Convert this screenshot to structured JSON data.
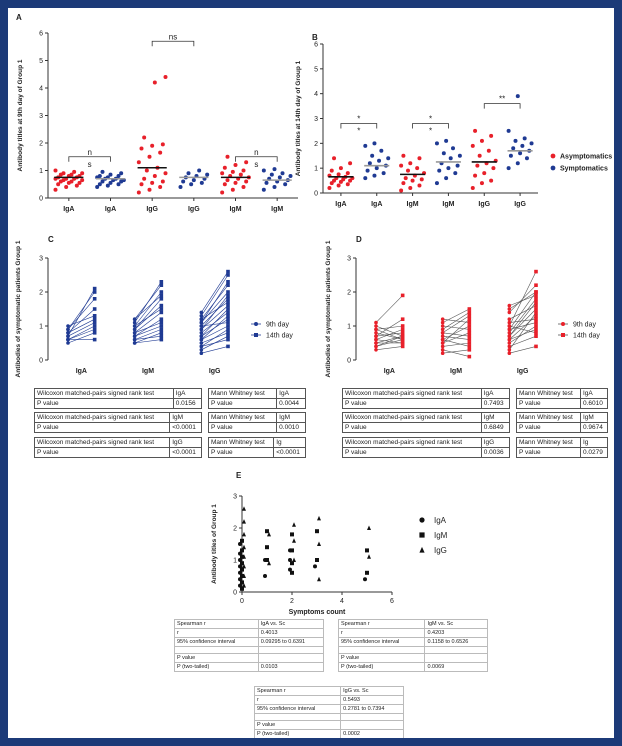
{
  "chart_data": [
    {
      "panel": "A",
      "type": "scatter",
      "ylabel": "Antibody titles at 9th day of Group 1",
      "ylim": [
        0,
        6
      ],
      "yticks": [
        "0",
        "1",
        "2",
        "3",
        "4",
        "5",
        "6"
      ],
      "categories": [
        "IgA",
        "IgA",
        "IgG",
        "IgG",
        "IgM",
        "IgM"
      ],
      "colors": [
        "#e8202a",
        "#1f3a93",
        "#e8202a",
        "#1f3a93",
        "#e8202a",
        "#1f3a93"
      ],
      "points": [
        [
          0.3,
          0.4,
          0.45,
          0.5,
          0.55,
          0.55,
          0.6,
          0.6,
          0.65,
          0.65,
          0.7,
          0.7,
          0.7,
          0.75,
          0.75,
          0.8,
          0.8,
          0.85,
          0.85,
          0.9,
          0.9,
          0.95,
          1.0
        ],
        [
          0.4,
          0.45,
          0.5,
          0.5,
          0.55,
          0.6,
          0.6,
          0.65,
          0.65,
          0.7,
          0.7,
          0.75,
          0.75,
          0.8,
          0.8,
          0.85,
          0.9,
          0.95
        ],
        [
          0.2,
          0.3,
          0.4,
          0.5,
          0.55,
          0.6,
          0.7,
          0.8,
          0.9,
          1.0,
          1.1,
          1.3,
          1.5,
          1.65,
          1.8,
          1.9,
          1.95,
          2.2,
          4.2,
          4.4
        ],
        [
          0.4,
          0.5,
          0.55,
          0.6,
          0.65,
          0.7,
          0.75,
          0.8,
          0.85,
          0.9,
          1.0
        ],
        [
          0.2,
          0.3,
          0.4,
          0.5,
          0.55,
          0.6,
          0.65,
          0.7,
          0.75,
          0.8,
          0.85,
          0.9,
          0.95,
          1.0,
          1.1,
          1.2,
          1.3,
          1.5
        ],
        [
          0.3,
          0.4,
          0.5,
          0.55,
          0.6,
          0.65,
          0.7,
          0.75,
          0.8,
          0.85,
          0.9,
          1.0,
          1.05
        ]
      ],
      "means": [
        0.75,
        0.7,
        1.1,
        0.75,
        0.75,
        0.65
      ],
      "comparisons": [
        {
          "pair": [
            0,
            1
          ],
          "label_top": "n",
          "label_bottom": "s",
          "y": 1.5
        },
        {
          "pair": [
            2,
            3
          ],
          "label_top": "ns",
          "label_bottom": "",
          "y": 5.7
        },
        {
          "pair": [
            4,
            5
          ],
          "label_top": "n",
          "label_bottom": "s",
          "y": 1.5
        }
      ]
    },
    {
      "panel": "B",
      "type": "scatter",
      "ylabel": "Antibody titles at 14th day of Group 1",
      "ylim": [
        0,
        6
      ],
      "yticks": [
        "0",
        "1",
        "2",
        "3",
        "4",
        "5",
        "6"
      ],
      "categories": [
        "IgA",
        "IgA",
        "IgM",
        "IgM",
        "IgG",
        "IgG"
      ],
      "colors": [
        "#e8202a",
        "#1f3a93",
        "#e8202a",
        "#1f3a93",
        "#e8202a",
        "#1f3a93"
      ],
      "legend": [
        {
          "name": "Asymptomatics",
          "color": "#e8202a"
        },
        {
          "name": "Symptomatics",
          "color": "#1f3a93"
        }
      ],
      "points": [
        [
          0.2,
          0.3,
          0.35,
          0.4,
          0.45,
          0.5,
          0.5,
          0.55,
          0.6,
          0.6,
          0.65,
          0.7,
          0.75,
          0.8,
          0.9,
          1.0,
          1.2,
          1.4
        ],
        [
          0.6,
          0.7,
          0.8,
          0.9,
          1.0,
          1.1,
          1.2,
          1.3,
          1.4,
          1.5,
          1.7,
          1.9,
          2.0
        ],
        [
          0.1,
          0.2,
          0.3,
          0.4,
          0.5,
          0.55,
          0.6,
          0.7,
          0.8,
          0.9,
          1.0,
          1.1,
          1.2,
          1.4,
          1.5
        ],
        [
          0.4,
          0.6,
          0.8,
          0.9,
          1.0,
          1.1,
          1.2,
          1.4,
          1.5,
          1.6,
          1.8,
          2.0,
          2.1
        ],
        [
          0.2,
          0.4,
          0.5,
          0.7,
          0.8,
          1.0,
          1.1,
          1.2,
          1.3,
          1.5,
          1.7,
          1.9,
          2.1,
          2.3,
          2.5
        ],
        [
          1.0,
          1.2,
          1.4,
          1.5,
          1.6,
          1.7,
          1.8,
          1.9,
          2.0,
          2.1,
          2.2,
          2.5,
          3.9
        ]
      ],
      "means": [
        0.65,
        1.1,
        0.75,
        1.25,
        1.25,
        1.7
      ],
      "comparisons": [
        {
          "pair": [
            0,
            1
          ],
          "label_top": "*",
          "label_bottom": "*",
          "y": 2.8
        },
        {
          "pair": [
            2,
            3
          ],
          "label_top": "*",
          "label_bottom": "*",
          "y": 2.8
        },
        {
          "pair": [
            4,
            5
          ],
          "label_top": "**",
          "label_bottom": "",
          "y": 3.6
        }
      ]
    },
    {
      "panel": "C",
      "type": "line",
      "ylabel": "Antibodies of symptomatic patients Group 1",
      "ylim": [
        0,
        3
      ],
      "yticks": [
        "0",
        "1",
        "2",
        "3"
      ],
      "categories": [
        "IgA",
        "IgM",
        "IgG"
      ],
      "legend": [
        {
          "name": "9th day",
          "color": "#1f3a93"
        },
        {
          "name": "14th day",
          "color": "#1f3a93"
        }
      ],
      "pairs": [
        [
          [
            0.5,
            0.8
          ],
          [
            0.6,
            0.9
          ],
          [
            0.6,
            1.0
          ],
          [
            0.7,
            1.1
          ],
          [
            0.8,
            1.2
          ],
          [
            0.8,
            1.5
          ],
          [
            0.9,
            1.8
          ],
          [
            0.9,
            2.0
          ],
          [
            1.0,
            1.3
          ],
          [
            0.6,
            0.6
          ],
          [
            0.7,
            2.1
          ]
        ],
        [
          [
            0.5,
            0.6
          ],
          [
            0.6,
            0.7
          ],
          [
            0.6,
            0.9
          ],
          [
            0.7,
            1.0
          ],
          [
            0.7,
            1.2
          ],
          [
            0.8,
            1.4
          ],
          [
            0.9,
            1.6
          ],
          [
            0.9,
            1.8
          ],
          [
            1.0,
            2.0
          ],
          [
            1.1,
            2.3
          ],
          [
            1.2,
            2.2
          ],
          [
            0.8,
            1.1
          ],
          [
            1.0,
            1.5
          ],
          [
            1.2,
            1.9
          ],
          [
            0.5,
            0.8
          ]
        ],
        [
          [
            0.2,
            0.4
          ],
          [
            0.4,
            0.6
          ],
          [
            0.5,
            0.8
          ],
          [
            0.6,
            1.0
          ],
          [
            0.7,
            1.2
          ],
          [
            0.8,
            1.4
          ],
          [
            0.9,
            1.6
          ],
          [
            1.0,
            1.8
          ],
          [
            1.1,
            2.0
          ],
          [
            1.2,
            2.2
          ],
          [
            1.3,
            2.5
          ],
          [
            1.4,
            2.6
          ],
          [
            0.6,
            1.3
          ],
          [
            0.9,
            1.9
          ],
          [
            1.0,
            1.1
          ],
          [
            0.4,
            0.9
          ],
          [
            0.7,
            1.5
          ],
          [
            1.2,
            1.7
          ],
          [
            0.3,
            0.7
          ],
          [
            1.1,
            2.3
          ]
        ]
      ],
      "line_color": "#1f3a93"
    },
    {
      "panel": "D",
      "type": "line",
      "ylabel": "Antibodies of symptomatic patients Group 1",
      "ylim": [
        0,
        3
      ],
      "yticks": [
        "0",
        "1",
        "2",
        "3"
      ],
      "categories": [
        "IgA",
        "IgM",
        "IgG"
      ],
      "legend": [
        {
          "name": "9th day",
          "color": "#e8202a"
        },
        {
          "name": "14th day",
          "color": "#e8202a"
        }
      ],
      "pairs": [
        [
          [
            0.3,
            0.4
          ],
          [
            0.4,
            0.6
          ],
          [
            0.5,
            0.7
          ],
          [
            0.6,
            0.5
          ],
          [
            0.7,
            0.8
          ],
          [
            0.8,
            0.6
          ],
          [
            0.9,
            1.0
          ],
          [
            1.0,
            0.7
          ],
          [
            1.1,
            1.9
          ],
          [
            0.6,
            0.9
          ],
          [
            0.5,
            0.5
          ],
          [
            0.7,
            1.2
          ],
          [
            0.4,
            0.7
          ],
          [
            0.9,
            0.6
          ]
        ],
        [
          [
            0.2,
            0.3
          ],
          [
            0.4,
            0.5
          ],
          [
            0.5,
            0.8
          ],
          [
            0.6,
            1.0
          ],
          [
            0.7,
            0.6
          ],
          [
            0.8,
            1.3
          ],
          [
            0.9,
            1.4
          ],
          [
            1.0,
            0.9
          ],
          [
            1.2,
            1.1
          ],
          [
            0.6,
            0.4
          ],
          [
            0.5,
            1.2
          ],
          [
            0.8,
            0.7
          ],
          [
            1.1,
            1.5
          ],
          [
            0.3,
            0.1
          ]
        ],
        [
          [
            0.2,
            0.4
          ],
          [
            0.4,
            0.7
          ],
          [
            0.5,
            1.0
          ],
          [
            0.6,
            1.3
          ],
          [
            0.7,
            1.5
          ],
          [
            0.8,
            1.8
          ],
          [
            0.9,
            2.0
          ],
          [
            1.0,
            2.6
          ],
          [
            1.1,
            1.2
          ],
          [
            1.2,
            1.6
          ],
          [
            1.4,
            2.2
          ],
          [
            1.6,
            1.9
          ],
          [
            0.6,
            0.9
          ],
          [
            0.9,
            1.1
          ],
          [
            1.0,
            0.8
          ],
          [
            0.3,
            1.4
          ],
          [
            1.5,
            2.0
          ],
          [
            0.7,
            1.7
          ]
        ]
      ],
      "line_color": "#555555"
    },
    {
      "panel": "E",
      "type": "scatter",
      "xlabel": "Symptoms count",
      "ylabel": "Antibody titles of Group 1",
      "xlim": [
        0,
        6
      ],
      "ylim": [
        0,
        3
      ],
      "xticks": [
        "0",
        "2",
        "4",
        "6"
      ],
      "yticks": [
        "0",
        "1",
        "2",
        "3"
      ],
      "legend": [
        {
          "name": "IgA",
          "marker": "circle"
        },
        {
          "name": "IgM",
          "marker": "square"
        },
        {
          "name": "IgG",
          "marker": "triangle"
        }
      ],
      "series": [
        {
          "name": "IgA",
          "x": [
            0,
            0,
            0,
            0,
            0,
            0,
            0,
            1,
            1,
            2,
            2,
            2,
            3,
            5
          ],
          "y": [
            0.2,
            0.4,
            0.6,
            0.8,
            1.0,
            1.2,
            1.5,
            0.5,
            1.0,
            0.7,
            1.0,
            1.3,
            0.8,
            0.4
          ]
        },
        {
          "name": "IgM",
          "x": [
            0,
            0,
            0,
            0,
            0,
            0,
            0,
            0,
            1,
            1,
            1,
            2,
            2,
            2,
            2,
            3,
            3,
            5,
            5
          ],
          "y": [
            0.1,
            0.3,
            0.5,
            0.7,
            0.9,
            1.1,
            1.3,
            1.6,
            1.0,
            1.4,
            1.9,
            0.6,
            0.9,
            1.3,
            1.8,
            1.0,
            1.9,
            0.6,
            1.3
          ]
        },
        {
          "name": "IgG",
          "x": [
            0,
            0,
            0,
            0,
            0,
            0,
            0,
            0,
            1,
            1,
            2,
            2,
            2,
            3,
            3,
            3,
            5,
            5
          ],
          "y": [
            0.2,
            0.5,
            0.8,
            1.1,
            1.4,
            1.8,
            2.2,
            2.6,
            0.9,
            1.8,
            1.0,
            1.6,
            2.1,
            0.4,
            1.5,
            2.3,
            1.1,
            2.0
          ]
        }
      ]
    }
  ],
  "tables": {
    "c": {
      "rows": [
        {
          "wilcoxon_title": "Wilcoxon matched-pairs signed rank test",
          "wilcoxon_ig": "IgA",
          "wilcoxon_label": "P value",
          "wilcoxon_value": "0.0156",
          "mw_title": "Mann Whitney test",
          "mw_ig": "IgA",
          "mw_label": "P value",
          "mw_value": "0.0044"
        },
        {
          "wilcoxon_title": "Wilcoxon matched-pairs signed rank test",
          "wilcoxon_ig": "IgM",
          "wilcoxon_label": "P value",
          "wilcoxon_value": "<0.0001",
          "mw_title": "Mann Whitney test",
          "mw_ig": "IgM",
          "mw_label": "P value",
          "mw_value": "0.0010"
        },
        {
          "wilcoxon_title": "Wilcoxon matched-pairs signed rank test",
          "wilcoxon_ig": "IgG",
          "wilcoxon_label": "P value",
          "wilcoxon_value": "<0.0001",
          "mw_title": "Mann Whitney test",
          "mw_ig": "Ig",
          "mw_label": "P value",
          "mw_value": "<0.0001"
        }
      ]
    },
    "d": {
      "rows": [
        {
          "wilcoxon_title": "Wilcoxon matched-pairs signed rank test",
          "wilcoxon_ig": "IgA",
          "wilcoxon_label": "P value",
          "wilcoxon_value": "0.7493",
          "mw_title": "Mann Whitney test",
          "mw_ig": "IgA",
          "mw_label": "P value",
          "mw_value": "0.6010"
        },
        {
          "wilcoxon_title": "Wilcoxon matched-pairs signed rank test",
          "wilcoxon_ig": "IgM",
          "wilcoxon_label": "P value",
          "wilcoxon_value": "0.6849",
          "mw_title": "Mann Whitney test",
          "mw_ig": "IgM",
          "mw_label": "P value",
          "mw_value": "0.9674"
        },
        {
          "wilcoxon_title": "Wilcoxon matched-pairs signed rank test",
          "wilcoxon_ig": "IgG",
          "wilcoxon_label": "P value",
          "wilcoxon_value": "0.0036",
          "mw_title": "Mann Whitney test",
          "mw_ig": "Ig",
          "mw_label": "P value",
          "mw_value": "0.0279"
        }
      ]
    },
    "spearman": [
      {
        "h1": "Spearman r",
        "h2": "IgA vs. Sc",
        "r_label": "r",
        "r_value": "0.4013",
        "ci_label": "95% confidence interval",
        "ci_value": "0.09295 to 0.6391",
        "p_head": "P value",
        "p_label": "P (two-tailed)",
        "p_value": "0.0103"
      },
      {
        "h1": "Spearman r",
        "h2": "IgM vs. Sc",
        "r_label": "r",
        "r_value": "0.4203",
        "ci_label": "95% confidence interval",
        "ci_value": "0.1158 to 0.6526",
        "p_head": "P value",
        "p_label": "P (two-tailed)",
        "p_value": "0.0069"
      },
      {
        "h1": "Spearman r",
        "h2": "IgG vs. Sc",
        "r_label": "r",
        "r_value": "0.5493",
        "ci_label": "95% confidence interval",
        "ci_value": "0.2781 to 0.7394",
        "p_head": "P value",
        "p_label": "P (two-tailed)",
        "p_value": "0.0002"
      }
    ]
  }
}
